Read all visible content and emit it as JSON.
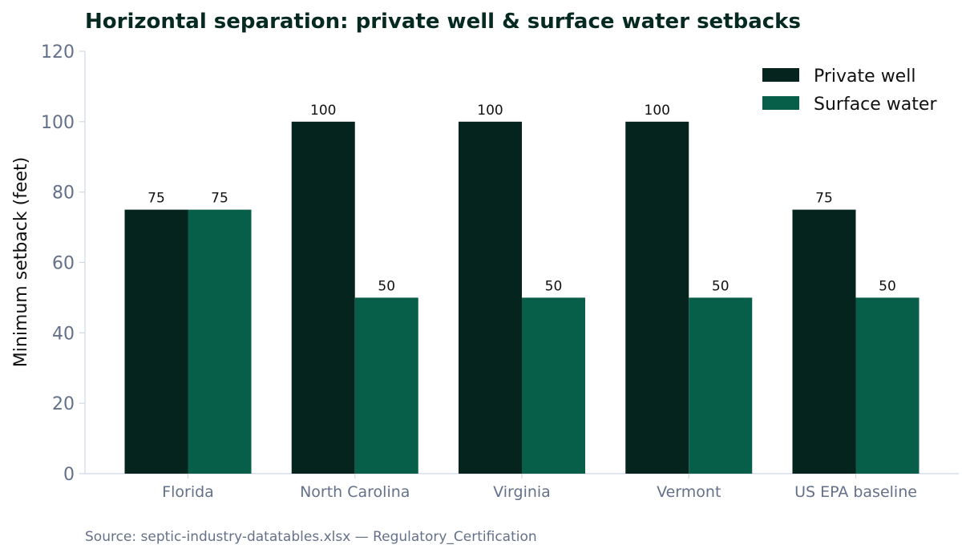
{
  "chart_data": {
    "type": "bar",
    "title": "Horizontal separation: private well & surface water setbacks",
    "xlabel": "",
    "ylabel": "Minimum setback (feet)",
    "categories": [
      "Florida",
      "North Carolina",
      "Virginia",
      "Vermont",
      "US EPA baseline"
    ],
    "series": [
      {
        "name": "Private well",
        "values": [
          75,
          100,
          100,
          100,
          75
        ],
        "color": "#04241d"
      },
      {
        "name": "Surface water",
        "values": [
          75,
          50,
          50,
          50,
          50
        ],
        "color": "#075e49"
      }
    ],
    "ylim": [
      0,
      120
    ],
    "yticks": [
      0,
      20,
      40,
      60,
      80,
      100,
      120
    ],
    "grid": false,
    "legend_position": "top-right",
    "source": "Source: septic-industry-datatables.xlsx — Regulatory_Certification"
  }
}
